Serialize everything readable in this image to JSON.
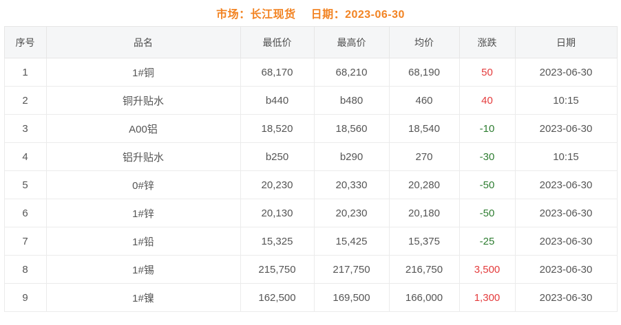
{
  "header": {
    "market_label": "市场：长江现货",
    "date_label": "日期：2023-06-30"
  },
  "colors": {
    "accent_orange": "#f28322",
    "up_red": "#e43b3c",
    "down_green": "#2e7d31",
    "header_bg": "#f5f6f7",
    "border": "#e6e6e6"
  },
  "table": {
    "headers": [
      "序号",
      "品名",
      "最低价",
      "最高价",
      "均价",
      "涨跌",
      "日期"
    ],
    "field_order": [
      "no",
      "name",
      "low",
      "high",
      "avg",
      "change",
      "date"
    ],
    "rows": [
      {
        "no": "1",
        "name": "1#铜",
        "low": "68,170",
        "high": "68,210",
        "avg": "68,190",
        "change": "50",
        "trend": "up",
        "date": "2023-06-30"
      },
      {
        "no": "2",
        "name": "铜升贴水",
        "low": "b440",
        "high": "b480",
        "avg": "460",
        "change": "40",
        "trend": "up",
        "date": "10:15"
      },
      {
        "no": "3",
        "name": "A00铝",
        "low": "18,520",
        "high": "18,560",
        "avg": "18,540",
        "change": "-10",
        "trend": "down",
        "date": "2023-06-30"
      },
      {
        "no": "4",
        "name": "铝升贴水",
        "low": "b250",
        "high": "b290",
        "avg": "270",
        "change": "-30",
        "trend": "down",
        "date": "10:15"
      },
      {
        "no": "5",
        "name": "0#锌",
        "low": "20,230",
        "high": "20,330",
        "avg": "20,280",
        "change": "-50",
        "trend": "down",
        "date": "2023-06-30"
      },
      {
        "no": "6",
        "name": "1#锌",
        "low": "20,130",
        "high": "20,230",
        "avg": "20,180",
        "change": "-50",
        "trend": "down",
        "date": "2023-06-30"
      },
      {
        "no": "7",
        "name": "1#铅",
        "low": "15,325",
        "high": "15,425",
        "avg": "15,375",
        "change": "-25",
        "trend": "down",
        "date": "2023-06-30"
      },
      {
        "no": "8",
        "name": "1#锡",
        "low": "215,750",
        "high": "217,750",
        "avg": "216,750",
        "change": "3,500",
        "trend": "up",
        "date": "2023-06-30"
      },
      {
        "no": "9",
        "name": "1#镍",
        "low": "162,500",
        "high": "169,500",
        "avg": "166,000",
        "change": "1,300",
        "trend": "up",
        "date": "2023-06-30"
      }
    ]
  }
}
